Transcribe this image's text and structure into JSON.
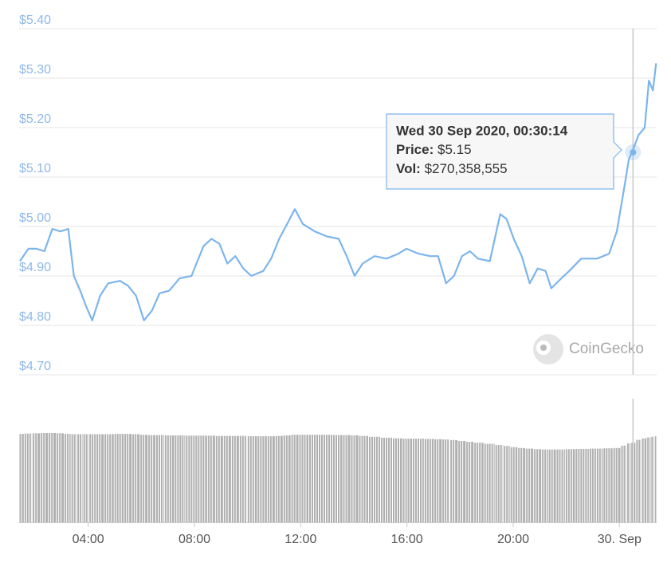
{
  "chart_data": [
    {
      "type": "line",
      "x": [
        1.43,
        1.75,
        2.05,
        2.35,
        2.65,
        2.95,
        3.25,
        3.46,
        3.7,
        3.91,
        4.15,
        4.45,
        4.75,
        5.2,
        5.5,
        5.8,
        6.1,
        6.4,
        6.69,
        7.05,
        7.44,
        7.89,
        8.34,
        8.64,
        8.94,
        9.24,
        9.54,
        9.84,
        10.14,
        10.59,
        10.89,
        11.19,
        11.49,
        11.78,
        12.08,
        12.53,
        12.98,
        13.43,
        13.73,
        14.03,
        14.33,
        14.78,
        15.23,
        15.68,
        15.98,
        16.43,
        16.87,
        17.17,
        17.47,
        17.77,
        18.07,
        18.37,
        18.67,
        19.12,
        19.51,
        19.75,
        20.02,
        20.32,
        20.62,
        20.92,
        21.22,
        21.43,
        21.81,
        22.11,
        22.56,
        23.16,
        23.61,
        23.9,
        24.2,
        24.35,
        24.51,
        24.72,
        24.95,
        25.11,
        25.26,
        25.38
      ],
      "series": [
        {
          "color": "#7cb5ec",
          "values": [
            4.93,
            4.955,
            4.955,
            4.95,
            4.995,
            4.99,
            4.995,
            4.9,
            4.87,
            4.84,
            4.81,
            4.86,
            4.885,
            4.89,
            4.88,
            4.86,
            4.81,
            4.83,
            4.865,
            4.87,
            4.895,
            4.9,
            4.96,
            4.975,
            4.965,
            4.925,
            4.94,
            4.915,
            4.9,
            4.91,
            4.935,
            4.975,
            5.005,
            5.035,
            5.005,
            4.99,
            4.98,
            4.975,
            4.94,
            4.9,
            4.925,
            4.94,
            4.935,
            4.945,
            4.955,
            4.945,
            4.94,
            4.94,
            4.885,
            4.9,
            4.94,
            4.95,
            4.935,
            4.93,
            5.025,
            5.015,
            4.975,
            4.94,
            4.885,
            4.915,
            4.91,
            4.875,
            4.895,
            4.91,
            4.935,
            4.935,
            4.945,
            4.99,
            5.085,
            5.135,
            5.155,
            5.185,
            5.2,
            5.295,
            5.275,
            5.33
          ]
        }
      ],
      "xlim": [
        1.4,
        25.4
      ],
      "ylim": [
        4.7,
        5.4
      ],
      "yticks": [
        {
          "value": 4.7,
          "label": "$4.70"
        },
        {
          "value": 4.8,
          "label": "$4.80"
        },
        {
          "value": 4.9,
          "label": "$4.90"
        },
        {
          "value": 5.0,
          "label": "$5.00"
        },
        {
          "value": 5.1,
          "label": "$5.10"
        },
        {
          "value": 5.2,
          "label": "$5.20"
        },
        {
          "value": 5.3,
          "label": "$5.30"
        },
        {
          "value": 5.4,
          "label": "$5.40"
        }
      ],
      "grid": true,
      "watermark": "CoinGecko",
      "tooltip": {
        "x": 24.51,
        "title": "Wed 30 Sep 2020, 00:30:14",
        "price_label": "Price:",
        "price": {
          "value": 5.15,
          "label": "$5.15"
        },
        "vol_label": "Vol:",
        "vol": {
          "value": 270358555,
          "label": "$270,358,555"
        }
      }
    },
    {
      "type": "bar",
      "x": [
        1.43,
        1.75,
        2.05,
        2.35,
        2.65,
        2.95,
        3.25,
        3.46,
        3.7,
        3.91,
        4.15,
        4.45,
        4.75,
        5.2,
        5.5,
        5.8,
        6.1,
        6.4,
        6.69,
        7.05,
        7.44,
        7.89,
        8.34,
        8.64,
        8.94,
        9.24,
        9.54,
        9.84,
        10.14,
        10.59,
        10.89,
        11.19,
        11.49,
        11.78,
        12.08,
        12.53,
        12.98,
        13.43,
        13.73,
        14.03,
        14.33,
        14.78,
        15.23,
        15.68,
        15.98,
        16.43,
        16.87,
        17.17,
        17.47,
        17.77,
        18.07,
        18.37,
        18.67,
        19.12,
        19.51,
        19.75,
        20.02,
        20.32,
        20.62,
        20.92,
        21.22,
        21.43,
        21.81,
        22.11,
        22.56,
        23.16,
        23.61,
        23.9,
        24.2,
        24.35,
        24.51,
        24.72,
        24.95,
        25.11,
        25.26,
        25.38
      ],
      "values": [
        300000000,
        301000000,
        302000000,
        303000000,
        303000000,
        302000000,
        300000000,
        299000000,
        299000000,
        299000000,
        299000000,
        299000000,
        299000000,
        300000000,
        300000000,
        299000000,
        297000000,
        296000000,
        296000000,
        295000000,
        295000000,
        294000000,
        294000000,
        294000000,
        293000000,
        293000000,
        293000000,
        293000000,
        292000000,
        292000000,
        292000000,
        293000000,
        295000000,
        297000000,
        297000000,
        297000000,
        297000000,
        296000000,
        296000000,
        295000000,
        293000000,
        290000000,
        287000000,
        285000000,
        284000000,
        284000000,
        283000000,
        282000000,
        281000000,
        279000000,
        276000000,
        273000000,
        270000000,
        266000000,
        262000000,
        259000000,
        255000000,
        252000000,
        250000000,
        248000000,
        247000000,
        247000000,
        247000000,
        248000000,
        249000000,
        250000000,
        251000000,
        252000000,
        260000000,
        268000000,
        270000000,
        280000000,
        285000000,
        288000000,
        290000000,
        292000000
      ],
      "color": "#b0b0b0",
      "xlim": [
        1.4,
        25.4
      ],
      "xticks": [
        {
          "value": 4,
          "label": "04:00"
        },
        {
          "value": 8,
          "label": "08:00"
        },
        {
          "value": 12,
          "label": "12:00"
        },
        {
          "value": 16,
          "label": "16:00"
        },
        {
          "value": 20,
          "label": "20:00"
        },
        {
          "value": 24,
          "label": "30. Sep"
        }
      ]
    }
  ]
}
